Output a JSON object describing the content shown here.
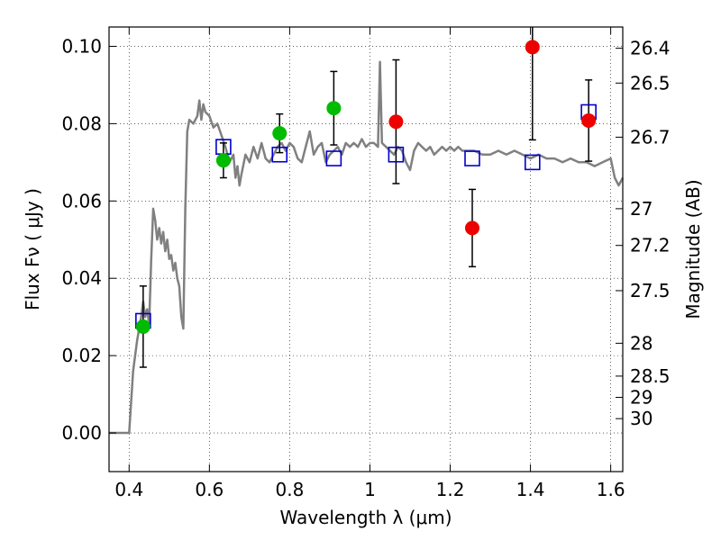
{
  "chart_data": {
    "type": "scatter",
    "xlabel": "Wavelength λ (μm)",
    "ylabel": "Flux Fν ( μJy )",
    "y2label": "Magnitude (AB)",
    "xlim": [
      0.35,
      1.63
    ],
    "ylim": [
      -0.01,
      0.105
    ],
    "grid": true,
    "x_ticks": [
      0.4,
      0.6,
      0.8,
      1.0,
      1.2,
      1.4,
      1.6
    ],
    "x_tick_labels": [
      "0.4",
      "0.6",
      "0.8",
      "1",
      "1.2",
      "1.4",
      "1.6"
    ],
    "y_ticks": [
      0.0,
      0.02,
      0.04,
      0.06,
      0.08,
      0.1
    ],
    "y_tick_labels": [
      "0.00",
      "0.02",
      "0.04",
      "0.06",
      "0.08",
      "0.10"
    ],
    "y2_ticks": [
      {
        "label": "26.4",
        "flux": 0.0995
      },
      {
        "label": "26.5",
        "flux": 0.0905
      },
      {
        "label": "26.7",
        "flux": 0.0765
      },
      {
        "label": "27",
        "flux": 0.058
      },
      {
        "label": "27.2",
        "flux": 0.0485
      },
      {
        "label": "27.5",
        "flux": 0.0368
      },
      {
        "label": "28",
        "flux": 0.0232
      },
      {
        "label": "28.5",
        "flux": 0.0147
      },
      {
        "label": "29",
        "flux": 0.0092
      },
      {
        "label": "30",
        "flux": 0.0037
      }
    ],
    "series": [
      {
        "kind": "model_sed",
        "color": "#808080",
        "points": [
          [
            0.35,
            0.0
          ],
          [
            0.385,
            0.0
          ],
          [
            0.4,
            0.0
          ],
          [
            0.405,
            0.008
          ],
          [
            0.41,
            0.016
          ],
          [
            0.42,
            0.024
          ],
          [
            0.43,
            0.03
          ],
          [
            0.435,
            0.034
          ],
          [
            0.44,
            0.03
          ],
          [
            0.445,
            0.032
          ],
          [
            0.45,
            0.028
          ],
          [
            0.455,
            0.045
          ],
          [
            0.46,
            0.058
          ],
          [
            0.465,
            0.055
          ],
          [
            0.47,
            0.05
          ],
          [
            0.475,
            0.053
          ],
          [
            0.48,
            0.049
          ],
          [
            0.485,
            0.052
          ],
          [
            0.49,
            0.047
          ],
          [
            0.495,
            0.05
          ],
          [
            0.5,
            0.045
          ],
          [
            0.505,
            0.046
          ],
          [
            0.51,
            0.042
          ],
          [
            0.515,
            0.044
          ],
          [
            0.52,
            0.04
          ],
          [
            0.525,
            0.038
          ],
          [
            0.53,
            0.03
          ],
          [
            0.535,
            0.027
          ],
          [
            0.54,
            0.058
          ],
          [
            0.545,
            0.078
          ],
          [
            0.55,
            0.081
          ],
          [
            0.56,
            0.08
          ],
          [
            0.57,
            0.082
          ],
          [
            0.575,
            0.086
          ],
          [
            0.58,
            0.081
          ],
          [
            0.585,
            0.085
          ],
          [
            0.59,
            0.083
          ],
          [
            0.6,
            0.082
          ],
          [
            0.61,
            0.079
          ],
          [
            0.62,
            0.08
          ],
          [
            0.63,
            0.077
          ],
          [
            0.64,
            0.074
          ],
          [
            0.65,
            0.07
          ],
          [
            0.66,
            0.072
          ],
          [
            0.665,
            0.066
          ],
          [
            0.67,
            0.069
          ],
          [
            0.675,
            0.064
          ],
          [
            0.68,
            0.067
          ],
          [
            0.69,
            0.072
          ],
          [
            0.7,
            0.07
          ],
          [
            0.71,
            0.074
          ],
          [
            0.72,
            0.071
          ],
          [
            0.73,
            0.075
          ],
          [
            0.74,
            0.071
          ],
          [
            0.75,
            0.07
          ],
          [
            0.76,
            0.072
          ],
          [
            0.77,
            0.074
          ],
          [
            0.78,
            0.075
          ],
          [
            0.79,
            0.073
          ],
          [
            0.8,
            0.075
          ],
          [
            0.81,
            0.074
          ],
          [
            0.82,
            0.071
          ],
          [
            0.83,
            0.07
          ],
          [
            0.84,
            0.074
          ],
          [
            0.85,
            0.078
          ],
          [
            0.86,
            0.072
          ],
          [
            0.87,
            0.074
          ],
          [
            0.88,
            0.075
          ],
          [
            0.89,
            0.07
          ],
          [
            0.9,
            0.072
          ],
          [
            0.91,
            0.073
          ],
          [
            0.92,
            0.074
          ],
          [
            0.93,
            0.072
          ],
          [
            0.94,
            0.075
          ],
          [
            0.95,
            0.074
          ],
          [
            0.96,
            0.075
          ],
          [
            0.97,
            0.074
          ],
          [
            0.98,
            0.076
          ],
          [
            0.99,
            0.074
          ],
          [
            1.0,
            0.075
          ],
          [
            1.01,
            0.075
          ],
          [
            1.02,
            0.074
          ],
          [
            1.025,
            0.096
          ],
          [
            1.03,
            0.075
          ],
          [
            1.04,
            0.074
          ],
          [
            1.05,
            0.073
          ],
          [
            1.06,
            0.072
          ],
          [
            1.07,
            0.074
          ],
          [
            1.08,
            0.073
          ],
          [
            1.09,
            0.07
          ],
          [
            1.1,
            0.068
          ],
          [
            1.11,
            0.073
          ],
          [
            1.12,
            0.075
          ],
          [
            1.13,
            0.074
          ],
          [
            1.14,
            0.073
          ],
          [
            1.15,
            0.074
          ],
          [
            1.16,
            0.072
          ],
          [
            1.17,
            0.073
          ],
          [
            1.18,
            0.074
          ],
          [
            1.19,
            0.073
          ],
          [
            1.2,
            0.074
          ],
          [
            1.21,
            0.073
          ],
          [
            1.22,
            0.074
          ],
          [
            1.23,
            0.073
          ],
          [
            1.24,
            0.073
          ],
          [
            1.26,
            0.073
          ],
          [
            1.28,
            0.072
          ],
          [
            1.3,
            0.072
          ],
          [
            1.32,
            0.073
          ],
          [
            1.34,
            0.072
          ],
          [
            1.36,
            0.073
          ],
          [
            1.38,
            0.072
          ],
          [
            1.4,
            0.071
          ],
          [
            1.42,
            0.072
          ],
          [
            1.44,
            0.071
          ],
          [
            1.46,
            0.071
          ],
          [
            1.48,
            0.07
          ],
          [
            1.5,
            0.071
          ],
          [
            1.52,
            0.07
          ],
          [
            1.54,
            0.07
          ],
          [
            1.56,
            0.069
          ],
          [
            1.58,
            0.07
          ],
          [
            1.6,
            0.071
          ],
          [
            1.61,
            0.066
          ],
          [
            1.62,
            0.064
          ],
          [
            1.63,
            0.066
          ]
        ]
      },
      {
        "kind": "model_bandpass",
        "color": "#0000cc",
        "marker": "open-square",
        "points": [
          [
            0.435,
            0.029
          ],
          [
            0.635,
            0.074
          ],
          [
            0.775,
            0.072
          ],
          [
            0.91,
            0.071
          ],
          [
            1.065,
            0.072
          ],
          [
            1.255,
            0.071
          ],
          [
            1.405,
            0.07
          ],
          [
            1.545,
            0.083
          ]
        ]
      },
      {
        "kind": "observed_detection",
        "color": "#00bb00",
        "marker": "filled-circle",
        "points": [
          [
            0.435,
            0.0275,
            0.0105
          ],
          [
            0.635,
            0.0705,
            0.0045
          ],
          [
            0.775,
            0.0775,
            0.005
          ],
          [
            0.91,
            0.084,
            0.0095
          ]
        ]
      },
      {
        "kind": "observed_marginal",
        "color": "#ee0000",
        "marker": "filled-circle",
        "points": [
          [
            1.065,
            0.0805,
            0.016
          ],
          [
            1.255,
            0.053,
            0.01
          ],
          [
            1.405,
            0.0998,
            0.024
          ],
          [
            1.545,
            0.0808,
            0.0105
          ]
        ]
      }
    ]
  }
}
